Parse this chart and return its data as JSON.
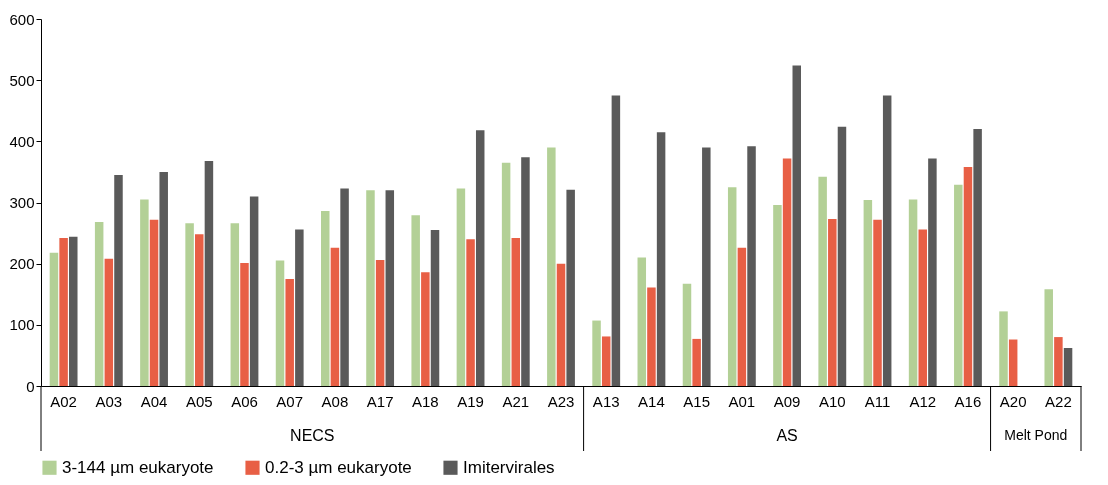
{
  "chart_data": {
    "type": "bar",
    "categories": [
      "A02",
      "A03",
      "A04",
      "A05",
      "A06",
      "A07",
      "A08",
      "A17",
      "A18",
      "A19",
      "A21",
      "A23",
      "A13",
      "A14",
      "A15",
      "A01",
      "A09",
      "A10",
      "A11",
      "A12",
      "A16",
      "A20",
      "A22"
    ],
    "series": [
      {
        "name": "3-144 µm eukaryote",
        "color": "#b3d096",
        "values": [
          218,
          268,
          305,
          266,
          266,
          205,
          286,
          320,
          279,
          323,
          365,
          390,
          107,
          210,
          167,
          325,
          296,
          342,
          304,
          305,
          329,
          122,
          158
        ]
      },
      {
        "name": "0.2-3 µm eukaryote",
        "color": "#e85f45",
        "values": [
          242,
          208,
          272,
          248,
          201,
          175,
          226,
          206,
          186,
          240,
          242,
          200,
          81,
          161,
          77,
          226,
          372,
          273,
          272,
          256,
          358,
          76,
          80
        ]
      },
      {
        "name": "Imitervirales",
        "color": "#5a5a5a",
        "values": [
          244,
          345,
          350,
          368,
          310,
          256,
          323,
          320,
          255,
          418,
          374,
          321,
          475,
          415,
          390,
          392,
          524,
          424,
          475,
          372,
          420,
          null,
          62
        ]
      }
    ],
    "ylim": [
      0,
      600
    ],
    "yticks": [
      0,
      100,
      200,
      300,
      400,
      500,
      600
    ],
    "grid": false,
    "legend": "bottom",
    "annotations": [
      "NECS",
      "AS",
      "Melt Pond"
    ]
  }
}
